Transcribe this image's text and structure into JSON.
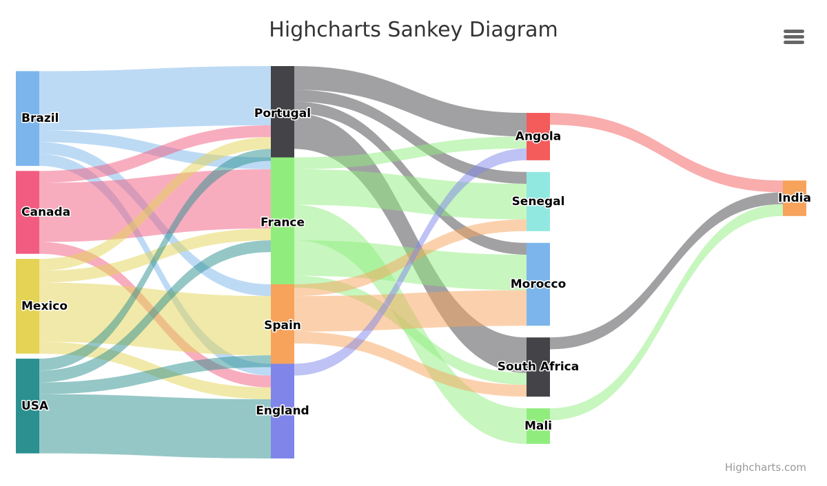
{
  "header": {
    "title": "Highcharts Sankey Diagram"
  },
  "menu": {
    "icon": "hamburger-menu-icon"
  },
  "credits": {
    "text": "Highcharts.com"
  },
  "chart_data": {
    "type": "sankey",
    "title": "Highcharts Sankey Diagram",
    "nodes": [
      {
        "id": "Brazil",
        "label": "Brazil",
        "color": "#7cb5ec"
      },
      {
        "id": "Canada",
        "label": "Canada",
        "color": "#f15c80"
      },
      {
        "id": "Mexico",
        "label": "Mexico",
        "color": "#e4d354"
      },
      {
        "id": "USA",
        "label": "USA",
        "color": "#2b908f"
      },
      {
        "id": "Portugal",
        "label": "Portugal",
        "color": "#434348"
      },
      {
        "id": "France",
        "label": "France",
        "color": "#90ed7d"
      },
      {
        "id": "Spain",
        "label": "Spain",
        "color": "#f7a35c"
      },
      {
        "id": "England",
        "label": "England",
        "color": "#8085e9"
      },
      {
        "id": "Angola",
        "label": "Angola",
        "color": "#f45b5b"
      },
      {
        "id": "Senegal",
        "label": "Senegal",
        "color": "#91e8e1"
      },
      {
        "id": "Morocco",
        "label": "Morocco",
        "color": "#7cb5ec"
      },
      {
        "id": "South Africa",
        "label": "South Africa",
        "color": "#434348"
      },
      {
        "id": "Mali",
        "label": "Mali",
        "color": "#90ed7d"
      },
      {
        "id": "India",
        "label": "India",
        "color": "#f7a35c"
      }
    ],
    "links": [
      {
        "from": "Brazil",
        "to": "Portugal",
        "weight": 5
      },
      {
        "from": "Brazil",
        "to": "France",
        "weight": 1
      },
      {
        "from": "Brazil",
        "to": "Spain",
        "weight": 1
      },
      {
        "from": "Brazil",
        "to": "England",
        "weight": 1
      },
      {
        "from": "Canada",
        "to": "Portugal",
        "weight": 1
      },
      {
        "from": "Canada",
        "to": "France",
        "weight": 5
      },
      {
        "from": "Canada",
        "to": "England",
        "weight": 1
      },
      {
        "from": "Mexico",
        "to": "Portugal",
        "weight": 1
      },
      {
        "from": "Mexico",
        "to": "France",
        "weight": 1
      },
      {
        "from": "Mexico",
        "to": "Spain",
        "weight": 5
      },
      {
        "from": "Mexico",
        "to": "England",
        "weight": 1
      },
      {
        "from": "USA",
        "to": "Portugal",
        "weight": 1
      },
      {
        "from": "USA",
        "to": "France",
        "weight": 1
      },
      {
        "from": "USA",
        "to": "Spain",
        "weight": 1
      },
      {
        "from": "USA",
        "to": "England",
        "weight": 5
      },
      {
        "from": "Portugal",
        "to": "Angola",
        "weight": 2
      },
      {
        "from": "Portugal",
        "to": "Senegal",
        "weight": 1
      },
      {
        "from": "Portugal",
        "to": "Morocco",
        "weight": 1
      },
      {
        "from": "Portugal",
        "to": "South Africa",
        "weight": 3
      },
      {
        "from": "France",
        "to": "Angola",
        "weight": 1
      },
      {
        "from": "France",
        "to": "Senegal",
        "weight": 3
      },
      {
        "from": "France",
        "to": "Mali",
        "weight": 3
      },
      {
        "from": "France",
        "to": "Morocco",
        "weight": 3
      },
      {
        "from": "France",
        "to": "South Africa",
        "weight": 1
      },
      {
        "from": "Spain",
        "to": "Senegal",
        "weight": 1
      },
      {
        "from": "Spain",
        "to": "Morocco",
        "weight": 3
      },
      {
        "from": "Spain",
        "to": "South Africa",
        "weight": 1
      },
      {
        "from": "England",
        "to": "Angola",
        "weight": 1
      },
      {
        "from": "Angola",
        "to": "India",
        "weight": 1
      },
      {
        "from": "South Africa",
        "to": "India",
        "weight": 1
      },
      {
        "from": "Mali",
        "to": "India",
        "weight": 1
      }
    ]
  }
}
